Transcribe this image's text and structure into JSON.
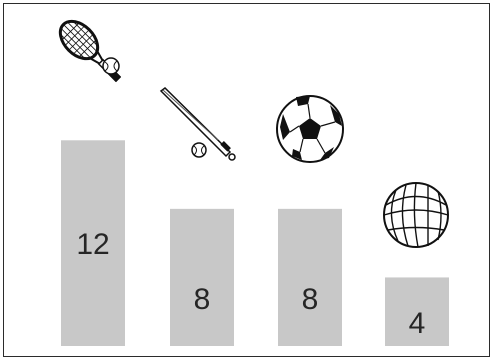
{
  "chart_data": {
    "type": "bar",
    "title": "",
    "xlabel": "",
    "ylabel": "",
    "categories": [
      "tennis",
      "baseball",
      "soccer",
      "basketball"
    ],
    "values": [
      12,
      8,
      8,
      4
    ],
    "value_labels": [
      "12",
      "8",
      "8",
      "4"
    ],
    "category_icons": [
      "tennis-racket-and-ball-icon",
      "baseball-bat-and-ball-icon",
      "soccer-ball-icon",
      "basketball-icon"
    ],
    "ylim": [
      0,
      14
    ],
    "grid": false,
    "legend": "none",
    "bar_color": "#c8c8c8"
  }
}
